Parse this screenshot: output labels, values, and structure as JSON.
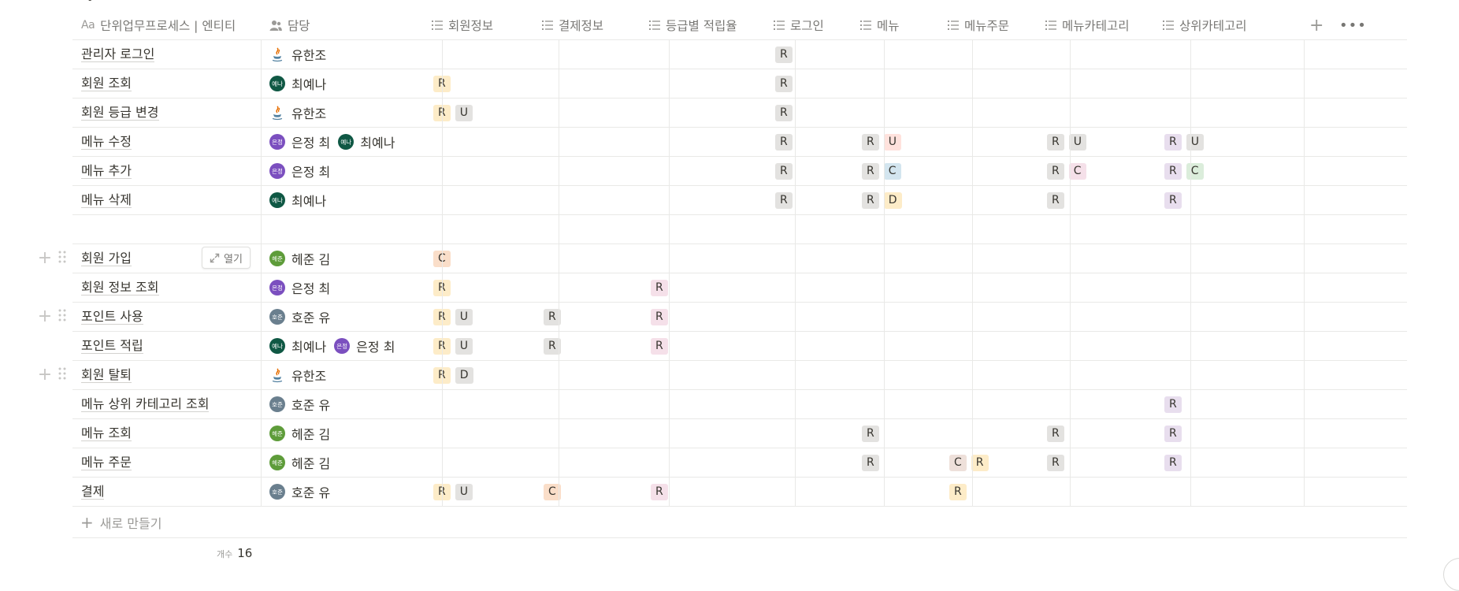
{
  "page_title_fragment": "ㄱ",
  "columns": [
    {
      "name": "단위업무프로세스 | 엔티티",
      "icon": "text-aa-icon"
    },
    {
      "name": "담당",
      "icon": "person-icon"
    },
    {
      "name": "회원정보",
      "icon": "list-icon"
    },
    {
      "name": "결제정보",
      "icon": "list-icon"
    },
    {
      "name": "등급별 적립율",
      "icon": "list-icon"
    },
    {
      "name": "로그인",
      "icon": "list-icon"
    },
    {
      "name": "메뉴",
      "icon": "list-icon"
    },
    {
      "name": "메뉴주문",
      "icon": "list-icon"
    },
    {
      "name": "메뉴카테고리",
      "icon": "list-icon"
    },
    {
      "name": "상위카테고리",
      "icon": "list-icon"
    }
  ],
  "header_actions": {
    "add": "+",
    "more": "•••"
  },
  "people": {
    "유한조": {
      "avatar_text": "",
      "avatar_color": "#ffffff",
      "avatar_type": "java-icon"
    },
    "최예나": {
      "avatar_text": "예나",
      "avatar_color": "#0f5844"
    },
    "은정 최": {
      "avatar_text": "은정",
      "avatar_color": "#7b4fbf"
    },
    "헤준 김": {
      "avatar_text": "헤준",
      "avatar_color": "#5e9c3a"
    },
    "호준 유": {
      "avatar_text": "호준",
      "avatar_color": "#6a7f8e"
    }
  },
  "tag_colors": {
    "회원정보": {
      "R": "yellow",
      "U": "gray",
      "D": "gray",
      "C": "orange"
    },
    "결제정보": {
      "R": "gray",
      "C": "orange"
    },
    "등급별 적립율": {
      "R": "pink"
    },
    "로그인": {
      "R": "gray"
    },
    "메뉴": {
      "R": "gray",
      "U": "red",
      "C": "blue",
      "D": "yellow"
    },
    "메뉴주문": {
      "C": "brown",
      "R": "yellow"
    },
    "메뉴카테고리": {
      "R": "gray",
      "U": "gray",
      "C": "pink"
    },
    "상위카테고리": {
      "R": "purple",
      "U": "gray",
      "C": "green"
    }
  },
  "rows": [
    {
      "name": "관리자 로그인",
      "owners": [
        "유한조"
      ],
      "tags": {
        "로그인": [
          "R"
        ]
      }
    },
    {
      "name": "회원 조회",
      "owners": [
        "최예나"
      ],
      "tags": {
        "회원정보": [
          "R"
        ],
        "로그인": [
          "R"
        ]
      }
    },
    {
      "name": "회원 등급 변경",
      "owners": [
        "유한조"
      ],
      "tags": {
        "회원정보": [
          "R",
          "U"
        ],
        "로그인": [
          "R"
        ]
      }
    },
    {
      "name": "메뉴 수정",
      "owners": [
        "은정 최",
        "최예나"
      ],
      "tags": {
        "로그인": [
          "R"
        ],
        "메뉴": [
          "R",
          "U"
        ],
        "메뉴카테고리": [
          "R",
          "U"
        ],
        "상위카테고리": [
          "R",
          "U"
        ]
      }
    },
    {
      "name": "메뉴 추가",
      "owners": [
        "은정 최"
      ],
      "tags": {
        "로그인": [
          "R"
        ],
        "메뉴": [
          "R",
          "C"
        ],
        "메뉴카테고리": [
          "R",
          "C"
        ],
        "상위카테고리": [
          "R",
          "C"
        ]
      }
    },
    {
      "name": "메뉴 삭제",
      "owners": [
        "최예나"
      ],
      "tags": {
        "로그인": [
          "R"
        ],
        "메뉴": [
          "R",
          "D"
        ],
        "메뉴카테고리": [
          "R"
        ],
        "상위카테고리": [
          "R"
        ]
      }
    },
    {
      "name": "",
      "owners": [],
      "tags": {}
    },
    {
      "name": "회원 가입",
      "owners": [
        "헤준 김"
      ],
      "tags": {
        "회원정보": [
          "C"
        ]
      },
      "hover": true,
      "open_label": "열기"
    },
    {
      "name": "회원 정보 조회",
      "owners": [
        "은정 최"
      ],
      "tags": {
        "회원정보": [
          "R"
        ],
        "등급별 적립율": [
          "R"
        ]
      }
    },
    {
      "name": "포인트 사용",
      "owners": [
        "호준 유"
      ],
      "tags": {
        "회원정보": [
          "R",
          "U"
        ],
        "결제정보": [
          "R"
        ],
        "등급별 적립율": [
          "R"
        ]
      },
      "handle": true
    },
    {
      "name": "포인트 적립",
      "owners": [
        "최예나",
        "은정 최"
      ],
      "tags": {
        "회원정보": [
          "R",
          "U"
        ],
        "결제정보": [
          "R"
        ],
        "등급별 적립율": [
          "R"
        ]
      }
    },
    {
      "name": "회원 탈퇴",
      "owners": [
        "유한조"
      ],
      "tags": {
        "회원정보": [
          "R",
          "D"
        ]
      },
      "handle": true
    },
    {
      "name": "메뉴 상위 카테고리 조회",
      "owners": [
        "호준 유"
      ],
      "tags": {
        "상위카테고리": [
          "R"
        ]
      }
    },
    {
      "name": "메뉴 조회",
      "owners": [
        "헤준 김"
      ],
      "tags": {
        "메뉴": [
          "R"
        ],
        "메뉴카테고리": [
          "R"
        ],
        "상위카테고리": [
          "R"
        ]
      }
    },
    {
      "name": "메뉴 주문",
      "owners": [
        "헤준 김"
      ],
      "tags": {
        "메뉴": [
          "R"
        ],
        "메뉴주문": [
          "C",
          "R"
        ],
        "메뉴카테고리": [
          "R"
        ],
        "상위카테고리": [
          "R"
        ]
      }
    },
    {
      "name": "결제",
      "owners": [
        "호준 유"
      ],
      "tags": {
        "회원정보": [
          "R",
          "U"
        ],
        "결제정보": [
          "C"
        ],
        "등급별 적립율": [
          "R"
        ],
        "메뉴주문": [
          "R"
        ]
      }
    }
  ],
  "new_row_label": "새로 만들기",
  "count": {
    "label": "개수",
    "value": "16"
  }
}
